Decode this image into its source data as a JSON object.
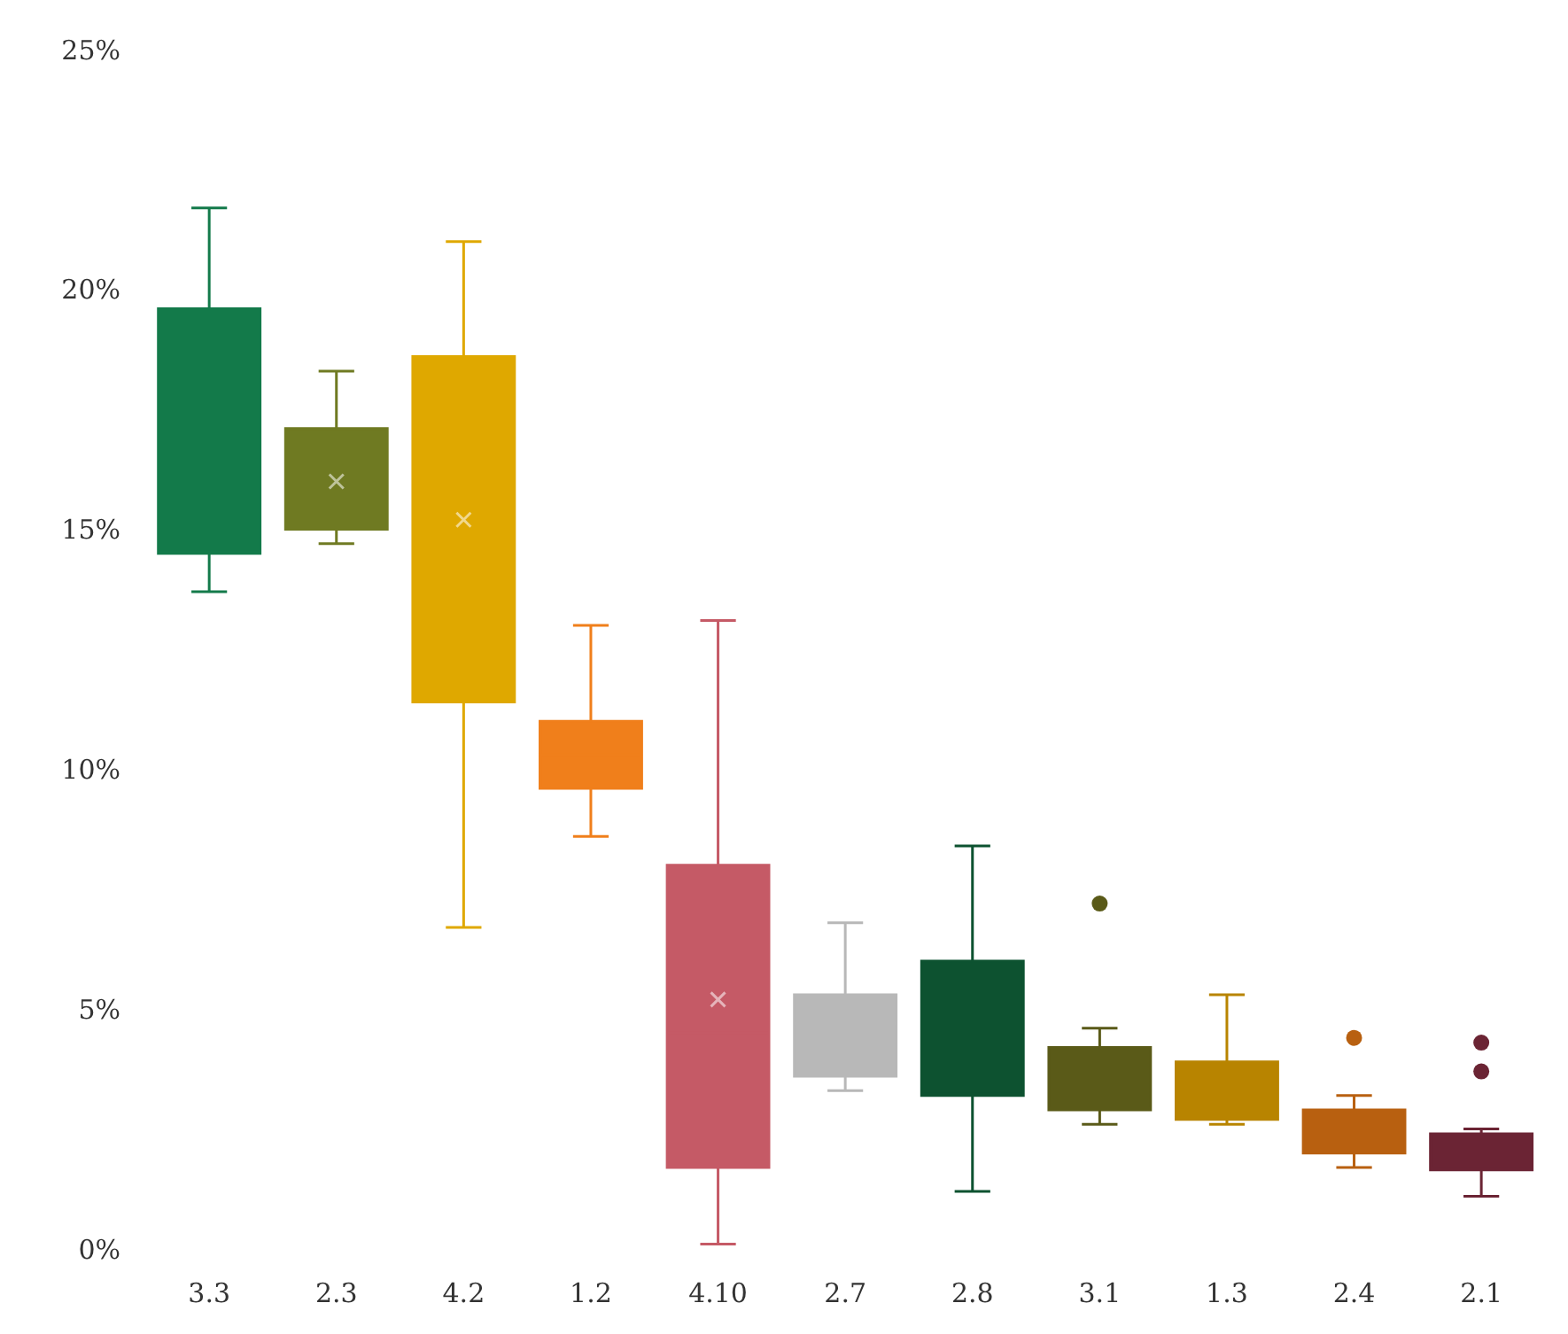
{
  "chart_data": {
    "type": "box",
    "categories": [
      "3.3",
      "2.3",
      "4.2",
      "1.2",
      "4.10",
      "2.7",
      "2.8",
      "3.1",
      "1.3",
      "2.4",
      "2.1"
    ],
    "colors": [
      "#137a4a",
      "#6f7a22",
      "#dfa800",
      "#f07f1b",
      "#c55a66",
      "#b8b8b8",
      "#0d5230",
      "#5a5a18",
      "#b88400",
      "#b86010",
      "#6b2434"
    ],
    "boxes": [
      {
        "low": 13.7,
        "q1": 14.5,
        "median": 14.5,
        "q3": 19.6,
        "high": 21.7
      },
      {
        "low": 14.7,
        "q1": 15.0,
        "median": 15.5,
        "q3": 17.1,
        "high": 18.3,
        "mean": 16.0
      },
      {
        "low": 6.7,
        "q1": 11.4,
        "median": 11.4,
        "q3": 18.6,
        "high": 21.0,
        "mean": 15.2
      },
      {
        "low": 8.6,
        "q1": 9.6,
        "median": 10.3,
        "q3": 11.0,
        "high": 13.0
      },
      {
        "low": 0.1,
        "q1": 1.7,
        "median": 4.5,
        "q3": 8.0,
        "high": 13.1,
        "mean": 5.2
      },
      {
        "low": 3.3,
        "q1": 3.6,
        "median": 4.7,
        "q3": 5.3,
        "high": 6.8
      },
      {
        "low": 1.2,
        "q1": 3.2,
        "median": 3.2,
        "q3": 6.0,
        "high": 8.4
      },
      {
        "low": 2.6,
        "q1": 2.9,
        "median": 2.9,
        "q3": 4.2,
        "high": 4.6,
        "outliers": [
          7.2
        ]
      },
      {
        "low": 2.6,
        "q1": 2.7,
        "median": 2.7,
        "q3": 3.9,
        "high": 5.3
      },
      {
        "low": 1.7,
        "q1": 2.0,
        "median": 2.0,
        "q3": 2.9,
        "high": 3.2,
        "outliers": [
          4.4
        ]
      },
      {
        "low": 1.1,
        "q1": 1.65,
        "median": 1.65,
        "q3": 2.4,
        "high": 2.5,
        "outliers": [
          4.3,
          3.7
        ]
      }
    ],
    "ylim": [
      0,
      25
    ],
    "yticks": [
      {
        "value": 0,
        "label": "0%"
      },
      {
        "value": 5,
        "label": "5%"
      },
      {
        "value": 10,
        "label": "10%"
      },
      {
        "value": 15,
        "label": "15%"
      },
      {
        "value": 20,
        "label": "20%"
      },
      {
        "value": 25,
        "label": "25%"
      }
    ],
    "grid": false
  }
}
